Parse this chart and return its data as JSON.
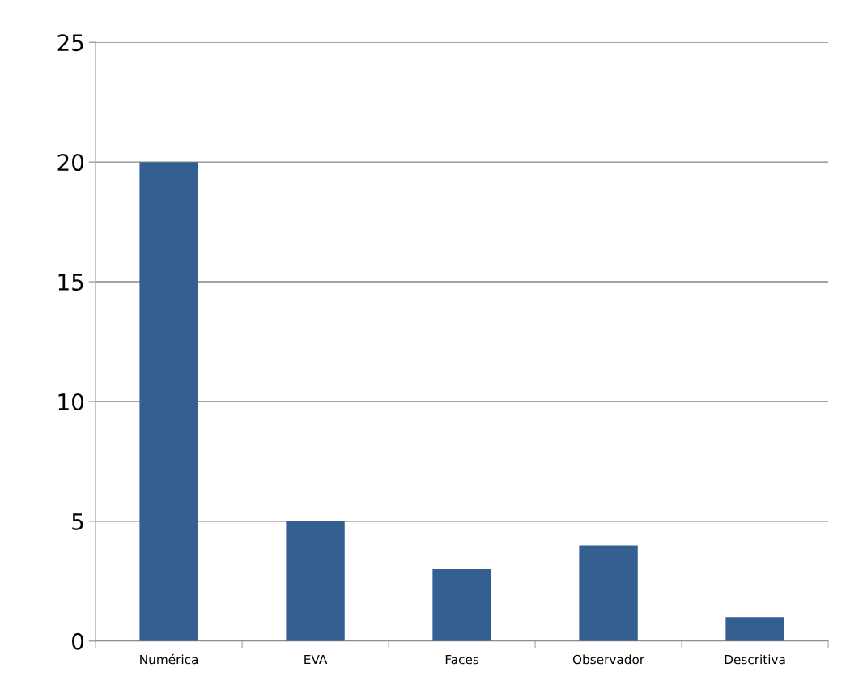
{
  "chart_data": {
    "type": "bar",
    "categories": [
      "Numérica",
      "EVA",
      "Faces",
      "Observador",
      "Descritiva"
    ],
    "values": [
      20,
      5,
      3,
      4,
      1
    ],
    "color": "#365f91",
    "ylim": [
      0,
      25
    ],
    "yticks": [
      0,
      5,
      10,
      15,
      20,
      25
    ],
    "grid": "y",
    "legend": false
  }
}
